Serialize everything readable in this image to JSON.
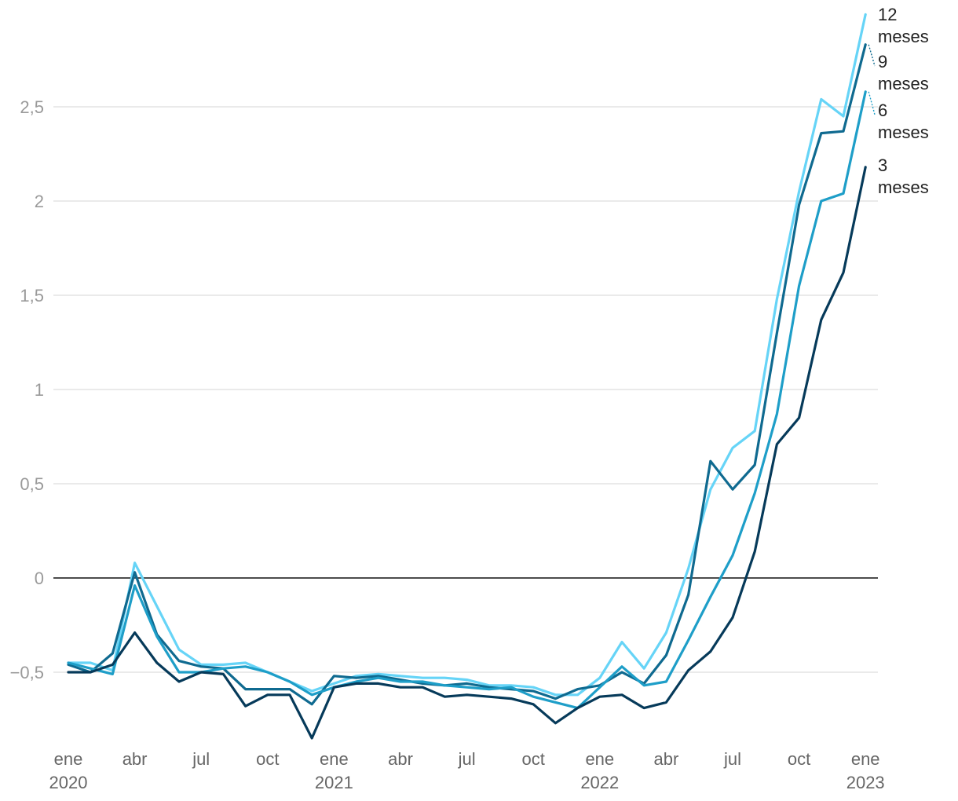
{
  "chart_data": {
    "type": "line",
    "title": "",
    "xlabel": "",
    "ylabel": "",
    "ylim": [
      -0.87,
      3.0
    ],
    "y_ticks": [
      {
        "value": -0.5,
        "label": "−0,5"
      },
      {
        "value": 0,
        "label": "0"
      },
      {
        "value": 0.5,
        "label": "0,5"
      },
      {
        "value": 1,
        "label": "1"
      },
      {
        "value": 1.5,
        "label": "1,5"
      },
      {
        "value": 2,
        "label": "2"
      },
      {
        "value": 2.5,
        "label": "2,5"
      }
    ],
    "x_ticks": [
      {
        "index": 0,
        "label": "ene",
        "year": "2020"
      },
      {
        "index": 3,
        "label": "abr",
        "year": ""
      },
      {
        "index": 6,
        "label": "jul",
        "year": ""
      },
      {
        "index": 9,
        "label": "oct",
        "year": ""
      },
      {
        "index": 12,
        "label": "ene",
        "year": "2021"
      },
      {
        "index": 15,
        "label": "abr",
        "year": ""
      },
      {
        "index": 18,
        "label": "jul",
        "year": ""
      },
      {
        "index": 21,
        "label": "oct",
        "year": ""
      },
      {
        "index": 24,
        "label": "ene",
        "year": "2022"
      },
      {
        "index": 27,
        "label": "abr",
        "year": ""
      },
      {
        "index": 30,
        "label": "jul",
        "year": ""
      },
      {
        "index": 33,
        "label": "oct",
        "year": ""
      },
      {
        "index": 36,
        "label": "ene",
        "year": "2023"
      }
    ],
    "x": [
      "2020-01",
      "2020-02",
      "2020-03",
      "2020-04",
      "2020-05",
      "2020-06",
      "2020-07",
      "2020-08",
      "2020-09",
      "2020-10",
      "2020-11",
      "2020-12",
      "2021-01",
      "2021-02",
      "2021-03",
      "2021-04",
      "2021-05",
      "2021-06",
      "2021-07",
      "2021-08",
      "2021-09",
      "2021-10",
      "2021-11",
      "2021-12",
      "2022-01",
      "2022-02",
      "2022-03",
      "2022-04",
      "2022-05",
      "2022-06",
      "2022-07",
      "2022-08",
      "2022-09",
      "2022-10",
      "2022-11",
      "2022-12",
      "2023-01"
    ],
    "series": [
      {
        "name": "12 meses",
        "label_lines": [
          "12",
          "meses"
        ],
        "color": "#66d4f7",
        "values": [
          -0.45,
          -0.45,
          -0.49,
          0.08,
          -0.15,
          -0.38,
          -0.46,
          -0.46,
          -0.45,
          -0.5,
          -0.55,
          -0.6,
          -0.56,
          -0.52,
          -0.51,
          -0.52,
          -0.53,
          -0.53,
          -0.54,
          -0.57,
          -0.57,
          -0.58,
          -0.62,
          -0.62,
          -0.53,
          -0.34,
          -0.48,
          -0.29,
          0.05,
          0.47,
          0.69,
          0.78,
          1.48,
          2.05,
          2.54,
          2.45,
          2.99
        ]
      },
      {
        "name": "9 meses",
        "label_lines": [
          "9",
          "meses"
        ],
        "color": "#0f6a90",
        "values": [
          -0.46,
          -0.5,
          -0.4,
          0.03,
          -0.3,
          -0.44,
          -0.47,
          -0.48,
          -0.59,
          -0.59,
          -0.59,
          -0.67,
          -0.52,
          -0.53,
          -0.52,
          -0.54,
          -0.56,
          -0.57,
          -0.56,
          -0.58,
          -0.59,
          -0.6,
          -0.64,
          -0.59,
          -0.57,
          -0.5,
          -0.56,
          -0.41,
          -0.09,
          0.62,
          0.47,
          0.6,
          1.3,
          1.98,
          2.36,
          2.37,
          2.83
        ]
      },
      {
        "name": "6 meses",
        "label_lines": [
          "6",
          "meses"
        ],
        "color": "#1e9ec8",
        "values": [
          -0.45,
          -0.48,
          -0.51,
          -0.04,
          -0.31,
          -0.5,
          -0.5,
          -0.48,
          -0.47,
          -0.5,
          -0.55,
          -0.62,
          -0.58,
          -0.55,
          -0.53,
          -0.55,
          -0.55,
          -0.57,
          -0.58,
          -0.59,
          -0.58,
          -0.63,
          -0.66,
          -0.69,
          -0.58,
          -0.47,
          -0.57,
          -0.55,
          -0.33,
          -0.1,
          0.12,
          0.45,
          0.87,
          1.55,
          2.0,
          2.04,
          2.58
        ]
      },
      {
        "name": "3 meses",
        "label_lines": [
          "3",
          "meses"
        ],
        "color": "#063a5a",
        "values": [
          -0.5,
          -0.5,
          -0.46,
          -0.29,
          -0.45,
          -0.55,
          -0.5,
          -0.51,
          -0.68,
          -0.62,
          -0.62,
          -0.85,
          -0.58,
          -0.56,
          -0.56,
          -0.58,
          -0.58,
          -0.63,
          -0.62,
          -0.63,
          -0.64,
          -0.67,
          -0.77,
          -0.69,
          -0.63,
          -0.62,
          -0.69,
          -0.66,
          -0.49,
          -0.39,
          -0.21,
          0.14,
          0.71,
          0.85,
          1.37,
          1.62,
          2.18
        ]
      }
    ],
    "grid": true,
    "legend": "right-end labels"
  }
}
